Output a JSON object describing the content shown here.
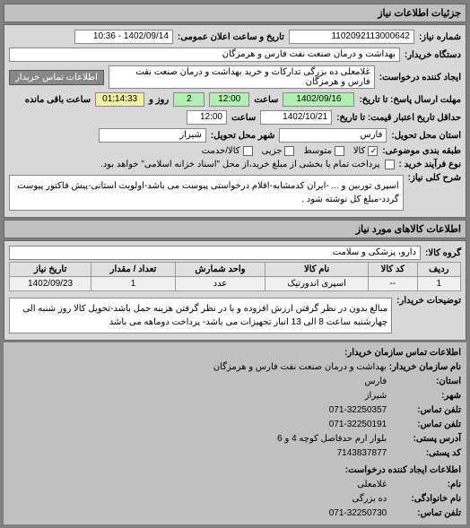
{
  "header": "جزئیات اطلاعات نیاز",
  "fields": {
    "req_number_label": "شماره نیاز:",
    "req_number": "1102092113000642",
    "announce_label": "تاریخ و ساعت اعلان عمومی:",
    "announce_value": "1402/09/14 - 10:36",
    "buyer_label": "دستگاه خریدار:",
    "buyer_value": "بهداشت و درمان صنعت نفت فارس و هرمزگان",
    "creator_label": "ایجاد کننده درخواست:",
    "creator_value": "غلامعلی ده بزرگی تدارکات و خرید بهداشت و درمان صنعت نفت فارس و هرمزگان",
    "contact_btn": "اطلاعات تماس خریدار",
    "deadline_send_label": "مهلت ارسال پاسخ: تا تاریخ:",
    "deadline_send_date": "1402/09/16",
    "deadline_send_time_label": "ساعت",
    "deadline_send_time": "12:00",
    "days_label": "روز و",
    "days_value": "2",
    "remain_label": "ساعت باقی مانده",
    "remain_value": "01:14:33",
    "validity_label": "حداقل تاریخ اعتبار قیمت: تا تاریخ:",
    "validity_date": "1402/10/21",
    "validity_time_label": "ساعت",
    "validity_time": "12:00",
    "province_label": "استان محل تحویل:",
    "province_value": "فارس",
    "city_label": "شهر محل تحویل:",
    "city_value": "شیراز",
    "pack_label": "طبقه بندی موضوعی:",
    "pack_opts": {
      "goods": "کالا",
      "medium": "متوسط",
      "partial": "جزیی",
      "single": "کالا/خدمت"
    },
    "process_label": "نوع فرآیند خرید :",
    "process_note": "پرداخت تمام یا بخشی از مبلغ خرید،از محل \"اسناد خزانه اسلامی\" خواهد بود.",
    "general_label": "شرح کلی نیاز:",
    "general_value": "اسپری توربین و ... -ایران کد‌مشابه-اقلام درخواستی پیوست می باشد-اولویت استانی-پیش فاکتور پیوست گردد-مبلغ کل نوشته شود .",
    "goods_header": "اطلاعات کالاهای مورد نیاز",
    "group_label": "گروه کالا:",
    "group_value": "دارو، پزشکی و سلامت"
  },
  "table": {
    "headers": [
      "ردیف",
      "کد کالا",
      "نام کالا",
      "واحد شمارش",
      "تعداد / مقدار",
      "تاریخ نیاز"
    ],
    "rows": [
      [
        "1",
        "--",
        "اسپری اندورتیک",
        "عدد",
        "1",
        "1402/09/23"
      ]
    ]
  },
  "notes": {
    "label": "توضیحات خریدار:",
    "value": "مبالغ بدون در نظر گرفتن ارزش افزوده و با در نظر گرفتن هزینه حمل باشد-تحویل کالا روز شنبه الی چهارشنبه ساعت 8 الی 13 انبار تجهیزات می باشد- پرداخت دوماهه می باشد"
  },
  "footer": {
    "section1_title": "اطلاعات تماس سازمان خریدار:",
    "org_label": "نام سازمان خریدار:",
    "org_value": "بهداشت و درمان صنعت نفت فارس و هرمزگان",
    "province_label": "استان:",
    "province_value": "فارس",
    "city_label": "شهر:",
    "city_value": "شیراز",
    "phone_label": "تلفن تماس:",
    "phone_value": "071-32250357",
    "fax_label": "تلفن تماس:",
    "fax_value": "071-32250191",
    "addr_label": "آدرس پستی:",
    "addr_value": "بلوار ارم حدفاصل کوچه 4 و 6",
    "postal_label": "کد پستی:",
    "postal_value": "7143837877",
    "section2_title": "اطلاعات ایجاد کننده درخواست:",
    "name_label": "نام:",
    "name_value": "غلامعلی",
    "lastname_label": "نام خانوادگی:",
    "lastname_value": "ده بزرگی",
    "phone2_label": "تلفن تماس:",
    "phone2_value": "071-32250730"
  }
}
